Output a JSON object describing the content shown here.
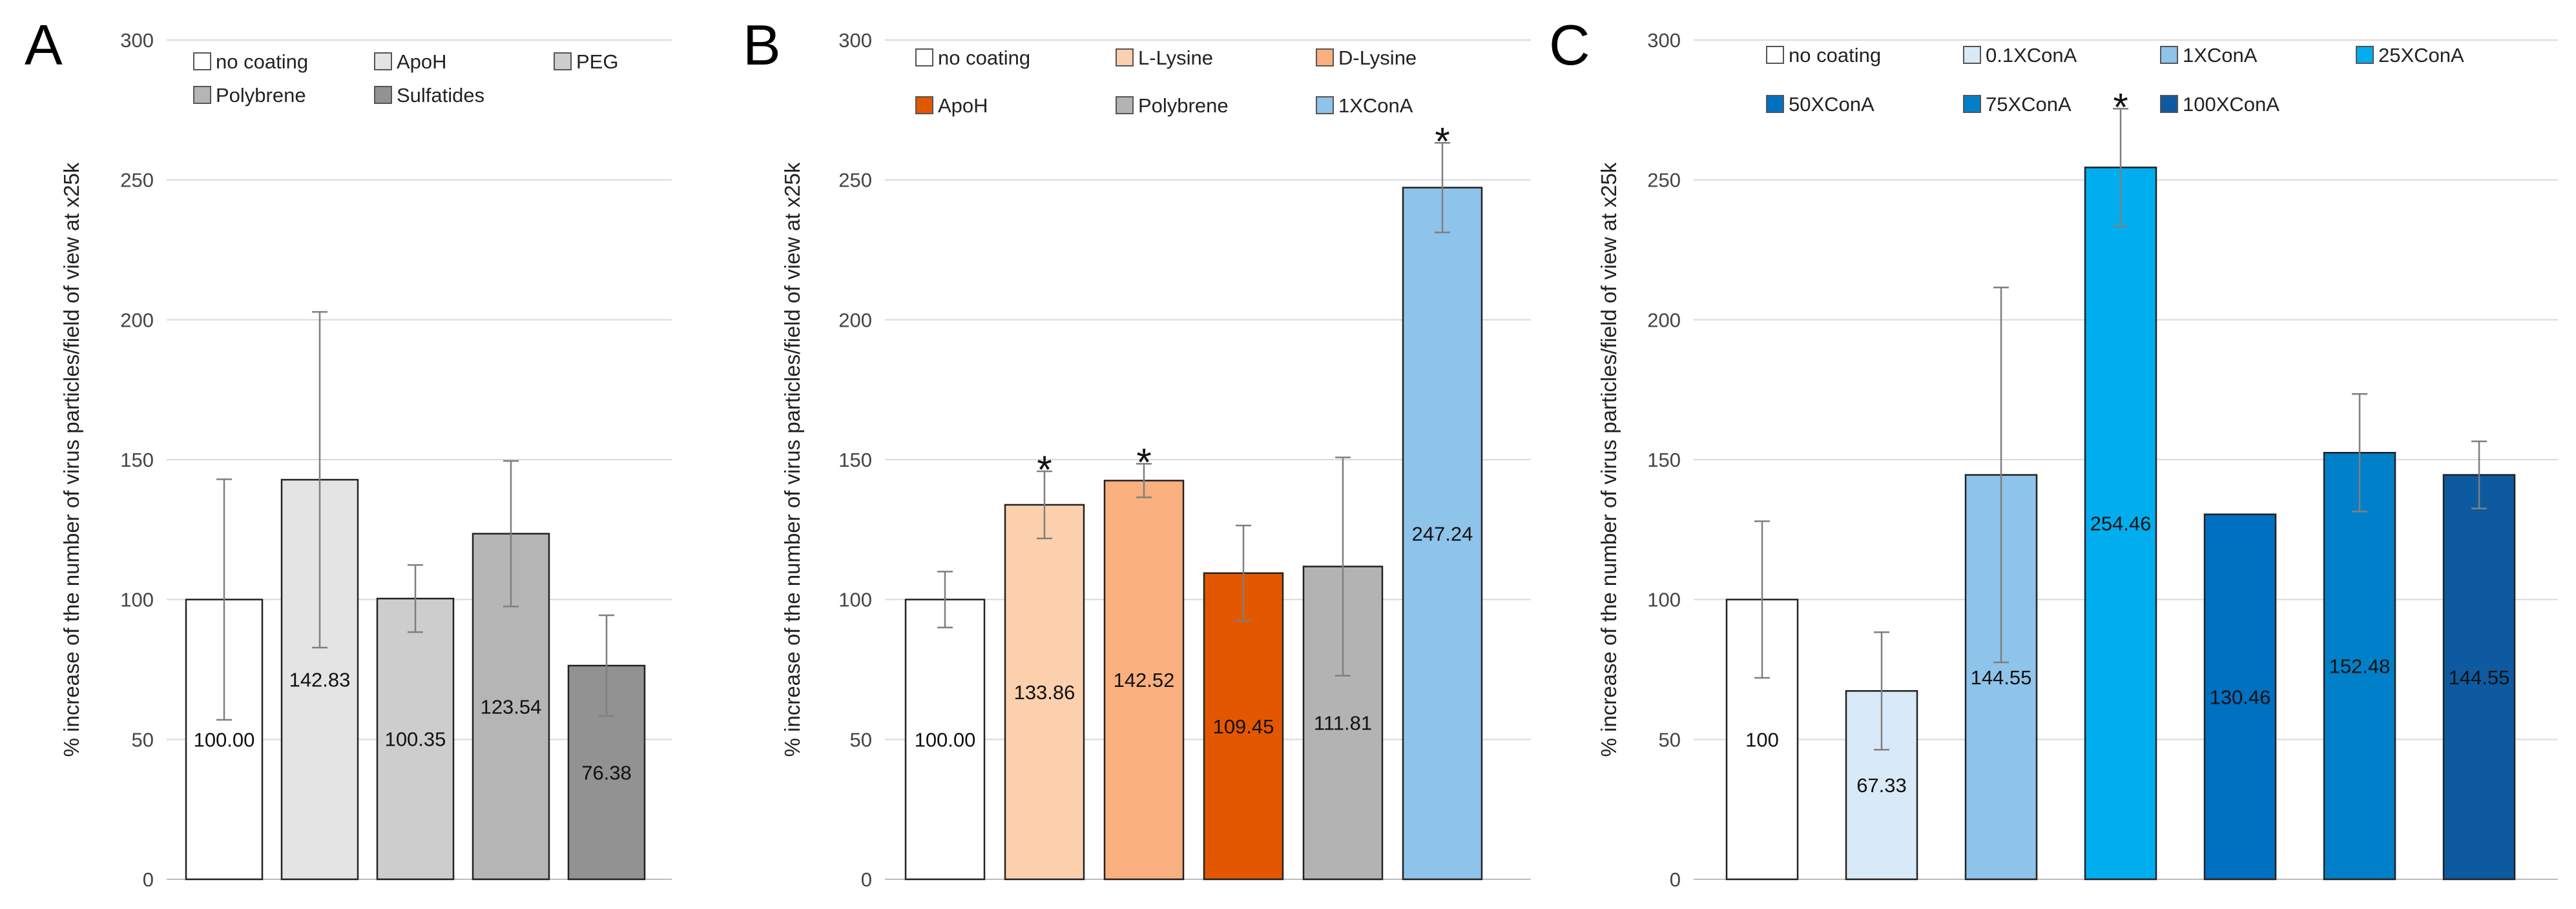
{
  "chart_data": [
    {
      "panel": "A",
      "type": "bar",
      "ylabel": "% increase of the number of virus particles/field of view at x25k",
      "ylim": [
        0,
        300
      ],
      "yticks": [
        0,
        50,
        100,
        150,
        200,
        250,
        300
      ],
      "grid": true,
      "legend_position": "top",
      "categories": [
        "no coating",
        "ApoH",
        "PEG",
        "Polybrene",
        "Sulfatides"
      ],
      "values": [
        100.0,
        142.83,
        100.35,
        123.54,
        76.38
      ],
      "value_labels": [
        "100.00",
        "142.83",
        "100.35",
        "123.54",
        "76.38"
      ],
      "errors": [
        43,
        60,
        12,
        26,
        18
      ],
      "colors": [
        "#ffffff",
        "#e4e4e4",
        "#cdcdcd",
        "#b5b5b5",
        "#929292"
      ],
      "significant": [
        false,
        false,
        false,
        false,
        false
      ]
    },
    {
      "panel": "B",
      "type": "bar",
      "ylabel": "% increase of the number of virus particles/field of view at x25k",
      "ylim": [
        0,
        300
      ],
      "yticks": [
        0,
        50,
        100,
        150,
        200,
        250,
        300
      ],
      "grid": true,
      "legend_position": "top",
      "categories": [
        "no coating",
        "L-Lysine",
        "D-Lysine",
        "ApoH",
        "Polybrene",
        "1XConA"
      ],
      "values": [
        100.0,
        133.86,
        142.52,
        109.45,
        111.81,
        247.24
      ],
      "value_labels": [
        "100.00",
        "133.86",
        "142.52",
        "109.45",
        "111.81",
        "247.24"
      ],
      "errors": [
        10,
        12,
        6,
        17,
        39,
        16
      ],
      "colors": [
        "#ffffff",
        "#fcd0ad",
        "#f9b07e",
        "#e35700",
        "#b3b3b3",
        "#8ec3ea"
      ],
      "significant": [
        false,
        true,
        true,
        false,
        false,
        true
      ]
    },
    {
      "panel": "C",
      "type": "bar",
      "ylabel": "% increase of the number of virus particles/field of view at x25k",
      "ylim": [
        0,
        300
      ],
      "yticks": [
        0,
        50,
        100,
        150,
        200,
        250,
        300
      ],
      "grid": true,
      "legend_position": "top",
      "categories": [
        "no coating",
        "0.1XConA",
        "1XConA",
        "25XConA",
        "50XConA",
        "75XConA",
        "100XConA"
      ],
      "values": [
        100,
        67.33,
        144.55,
        254.46,
        130.46,
        152.48,
        144.55
      ],
      "value_labels": [
        "100",
        "67.33",
        "144.55",
        "254.46",
        "130.46",
        "152.48",
        "144.55"
      ],
      "label_positions": [
        "mid",
        "mid",
        "mid",
        "mid",
        "mid",
        "mid",
        "mid"
      ],
      "errors": [
        28,
        21,
        67,
        21,
        0,
        21,
        12
      ],
      "colors": [
        "#ffffff",
        "#d8e9f7",
        "#8ec3ea",
        "#00aeef",
        "#0070c0",
        "#0080c8",
        "#0d5aa0"
      ],
      "significant": [
        false,
        false,
        false,
        true,
        false,
        false,
        false
      ]
    }
  ]
}
